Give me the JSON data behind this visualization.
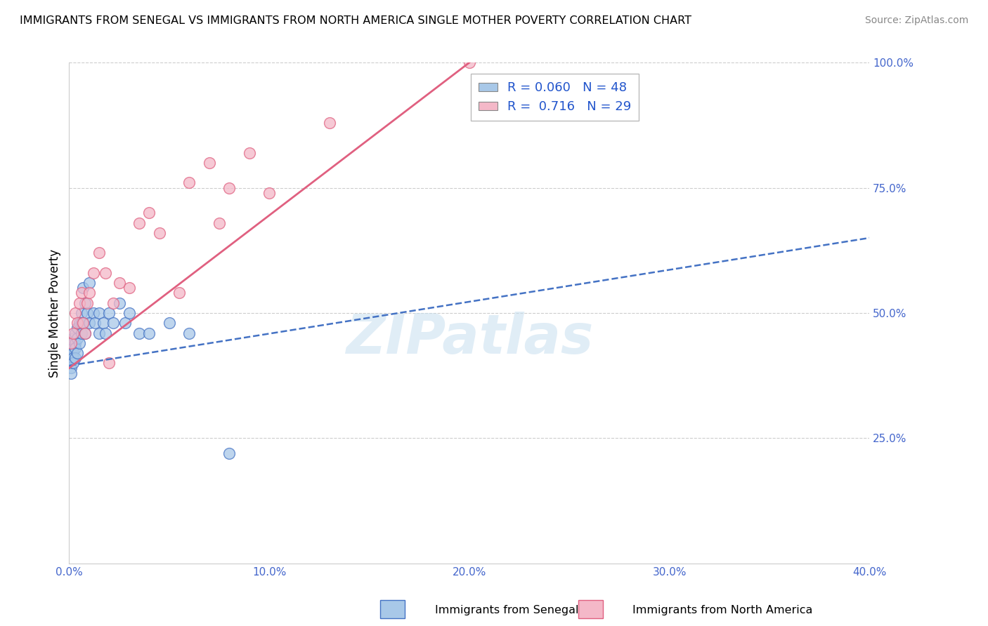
{
  "title": "IMMIGRANTS FROM SENEGAL VS IMMIGRANTS FROM NORTH AMERICA SINGLE MOTHER POVERTY CORRELATION CHART",
  "source": "Source: ZipAtlas.com",
  "ylabel": "Single Mother Poverty",
  "legend_label1": "Immigrants from Senegal",
  "legend_label2": "Immigrants from North America",
  "R1": 0.06,
  "N1": 48,
  "R2": 0.716,
  "N2": 29,
  "xlim": [
    0.0,
    0.4
  ],
  "ylim": [
    0.0,
    1.0
  ],
  "xticks": [
    0.0,
    0.1,
    0.2,
    0.3,
    0.4
  ],
  "xtick_labels": [
    "0.0%",
    "10.0%",
    "20.0%",
    "30.0%",
    "40.0%"
  ],
  "yticks": [
    0.25,
    0.5,
    0.75,
    1.0
  ],
  "ytick_labels": [
    "25.0%",
    "50.0%",
    "75.0%",
    "100.0%"
  ],
  "color_blue": "#a8c8e8",
  "color_pink": "#f4b8c8",
  "color_blue_line": "#4472c4",
  "color_pink_line": "#e06080",
  "bg_color": "#ffffff",
  "watermark": "ZIPatlas",
  "blue_x": [
    0.001,
    0.001,
    0.001,
    0.001,
    0.001,
    0.001,
    0.001,
    0.002,
    0.002,
    0.002,
    0.002,
    0.002,
    0.002,
    0.003,
    0.003,
    0.003,
    0.003,
    0.004,
    0.004,
    0.004,
    0.005,
    0.005,
    0.006,
    0.006,
    0.006,
    0.007,
    0.007,
    0.008,
    0.008,
    0.009,
    0.01,
    0.01,
    0.012,
    0.013,
    0.015,
    0.015,
    0.017,
    0.018,
    0.02,
    0.022,
    0.025,
    0.028,
    0.03,
    0.035,
    0.04,
    0.05,
    0.06,
    0.08
  ],
  "blue_y": [
    0.44,
    0.43,
    0.42,
    0.41,
    0.4,
    0.39,
    0.38,
    0.45,
    0.44,
    0.43,
    0.42,
    0.41,
    0.4,
    0.46,
    0.44,
    0.43,
    0.41,
    0.47,
    0.45,
    0.42,
    0.48,
    0.44,
    0.5,
    0.48,
    0.46,
    0.55,
    0.48,
    0.52,
    0.46,
    0.5,
    0.56,
    0.48,
    0.5,
    0.48,
    0.5,
    0.46,
    0.48,
    0.46,
    0.5,
    0.48,
    0.52,
    0.48,
    0.5,
    0.46,
    0.46,
    0.48,
    0.46,
    0.22
  ],
  "pink_x": [
    0.001,
    0.002,
    0.003,
    0.004,
    0.005,
    0.006,
    0.007,
    0.008,
    0.009,
    0.01,
    0.012,
    0.015,
    0.018,
    0.02,
    0.022,
    0.025,
    0.03,
    0.035,
    0.04,
    0.045,
    0.055,
    0.06,
    0.07,
    0.075,
    0.08,
    0.09,
    0.1,
    0.13,
    0.2
  ],
  "pink_y": [
    0.44,
    0.46,
    0.5,
    0.48,
    0.52,
    0.54,
    0.48,
    0.46,
    0.52,
    0.54,
    0.58,
    0.62,
    0.58,
    0.4,
    0.52,
    0.56,
    0.55,
    0.68,
    0.7,
    0.66,
    0.54,
    0.76,
    0.8,
    0.68,
    0.75,
    0.82,
    0.74,
    0.88,
    1.0
  ],
  "blue_trendline_x": [
    0.0,
    0.4
  ],
  "blue_trendline_y": [
    0.395,
    0.65
  ],
  "pink_trendline_x": [
    0.0,
    0.2
  ],
  "pink_trendline_y": [
    0.39,
    1.0
  ]
}
